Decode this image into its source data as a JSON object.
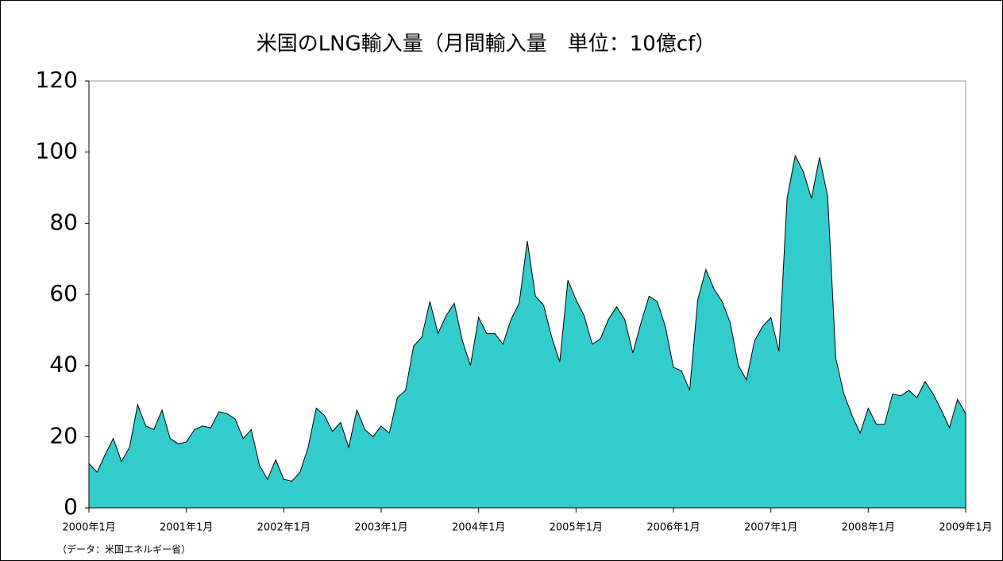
{
  "chart_data": {
    "type": "area",
    "title": "米国のLNG輸入量（月間輸入量　単位：10億cf）",
    "source": "（データ：米国エネルギー省）",
    "categories": [
      "2000年1月",
      null,
      null,
      null,
      null,
      null,
      null,
      null,
      null,
      null,
      null,
      null,
      "2001年1月",
      null,
      null,
      null,
      null,
      null,
      null,
      null,
      null,
      null,
      null,
      null,
      "2002年1月",
      null,
      null,
      null,
      null,
      null,
      null,
      null,
      null,
      null,
      null,
      null,
      "2003年1月",
      null,
      null,
      null,
      null,
      null,
      null,
      null,
      null,
      null,
      null,
      null,
      "2004年1月",
      null,
      null,
      null,
      null,
      null,
      null,
      null,
      null,
      null,
      null,
      null,
      "2005年1月",
      null,
      null,
      null,
      null,
      null,
      null,
      null,
      null,
      null,
      null,
      null,
      "2006年1月",
      null,
      null,
      null,
      null,
      null,
      null,
      null,
      null,
      null,
      null,
      null,
      "2007年1月",
      null,
      null,
      null,
      null,
      null,
      null,
      null,
      null,
      null,
      null,
      null,
      "2008年1月",
      null,
      null,
      null,
      null,
      null,
      null,
      null,
      null,
      null,
      null,
      null,
      "2009年1月"
    ],
    "values": [
      12.5,
      10,
      15,
      19.5,
      13,
      17,
      29,
      23,
      22,
      27.5,
      19.5,
      18,
      18.5,
      22,
      23,
      22.5,
      27,
      26.5,
      25,
      19.5,
      22,
      12,
      8,
      13.5,
      8,
      7.5,
      10,
      17,
      28,
      26,
      21.5,
      24,
      17,
      27.5,
      22,
      20,
      23,
      21,
      31,
      33,
      45.5,
      48,
      58,
      49,
      54,
      57.5,
      47,
      40,
      53.5,
      49,
      49,
      46,
      53,
      57.5,
      75,
      59.5,
      57,
      48,
      41,
      64,
      58.5,
      54,
      46,
      47.5,
      53,
      56.5,
      53,
      43.5,
      52,
      59.5,
      58,
      51,
      39.5,
      38.5,
      33,
      58.5,
      67,
      61.5,
      58,
      52,
      40,
      36,
      47,
      51,
      53.5,
      44,
      87,
      99,
      94.5,
      87,
      98.5,
      87.5,
      42,
      32,
      26,
      21,
      28,
      23.5,
      23.5,
      32,
      31.5,
      33,
      31,
      35.5,
      32,
      27.5,
      22.5,
      30.5,
      26.5
    ],
    "color": "#33cccc",
    "ylim": [
      0,
      120
    ],
    "yticks": [
      0,
      20,
      40,
      60,
      80,
      100,
      120
    ],
    "grid": false
  }
}
